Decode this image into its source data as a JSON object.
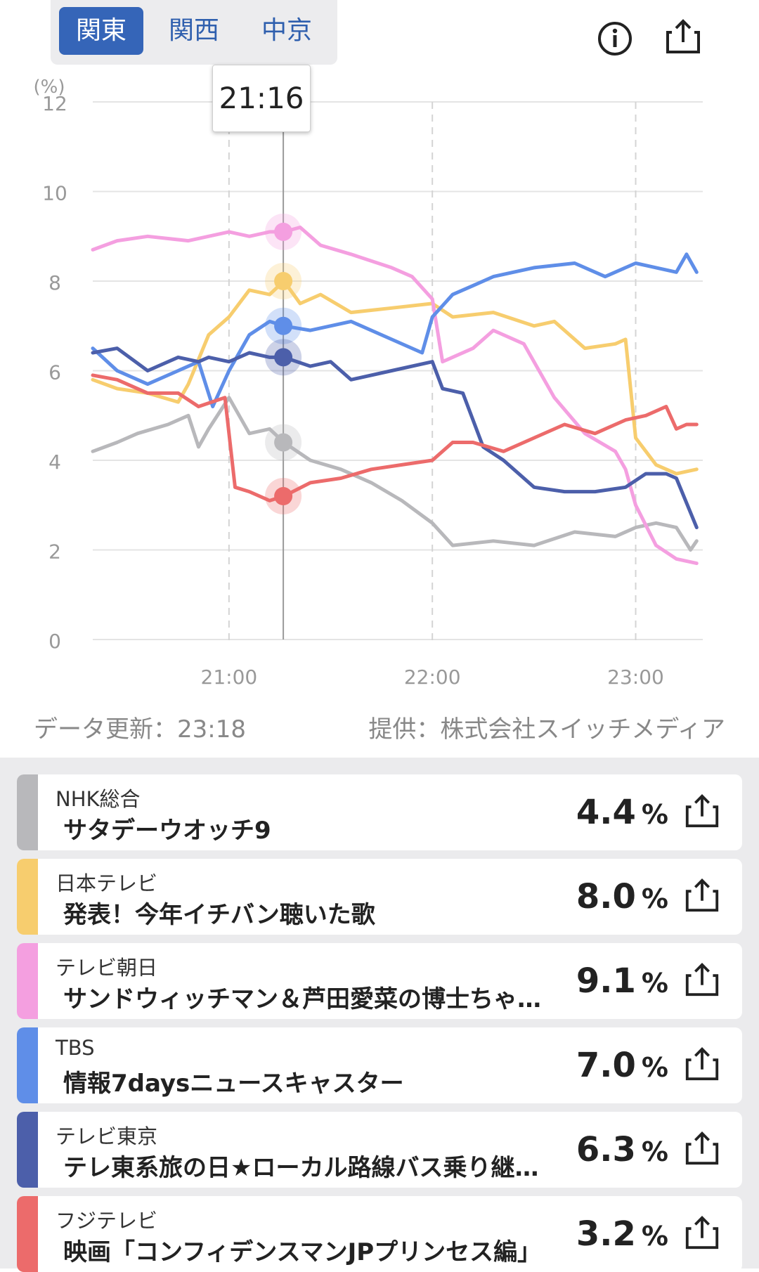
{
  "region_tabs": [
    {
      "label": "関東",
      "active": true
    },
    {
      "label": "関西",
      "active": false
    },
    {
      "label": "中京",
      "active": false
    }
  ],
  "header_icons": {
    "info": "info-icon",
    "share": "share-icon"
  },
  "tooltip_time": "21:16",
  "chart_data": {
    "type": "line",
    "ylabel": "(%)",
    "ylim": [
      0,
      12
    ],
    "yticks": [
      "0",
      "2",
      "4",
      "6",
      "8",
      "10",
      "12"
    ],
    "xlim": [
      20.33,
      23.33
    ],
    "xticks": [
      {
        "x": 21,
        "label": "21:00"
      },
      {
        "x": 22,
        "label": "22:00"
      },
      {
        "x": 23,
        "label": "23:00"
      }
    ],
    "grid": true,
    "cursor_x": 21.267,
    "series": [
      {
        "name": "NHK総合",
        "color": "#b8b8bb",
        "marker": 4.4,
        "x": [
          20.33,
          20.45,
          20.55,
          20.7,
          20.8,
          20.85,
          20.9,
          21.0,
          21.1,
          21.2,
          21.27,
          21.4,
          21.55,
          21.7,
          21.85,
          22.0,
          22.1,
          22.3,
          22.5,
          22.7,
          22.9,
          23.0,
          23.1,
          23.2,
          23.27,
          23.3
        ],
        "y": [
          4.2,
          4.4,
          4.6,
          4.8,
          5.0,
          4.3,
          4.7,
          5.4,
          4.6,
          4.7,
          4.4,
          4.0,
          3.8,
          3.5,
          3.1,
          2.6,
          2.1,
          2.2,
          2.1,
          2.4,
          2.3,
          2.5,
          2.6,
          2.5,
          2.0,
          2.2
        ]
      },
      {
        "name": "日本テレビ",
        "color": "#f7cd6e",
        "marker": 8.0,
        "x": [
          20.33,
          20.45,
          20.6,
          20.75,
          20.8,
          20.9,
          21.0,
          21.1,
          21.2,
          21.27,
          21.35,
          21.45,
          21.6,
          21.8,
          22.0,
          22.1,
          22.3,
          22.5,
          22.6,
          22.75,
          22.9,
          22.95,
          23.0,
          23.1,
          23.2,
          23.3
        ],
        "y": [
          5.8,
          5.6,
          5.5,
          5.3,
          5.7,
          6.8,
          7.2,
          7.8,
          7.7,
          8.0,
          7.5,
          7.7,
          7.3,
          7.4,
          7.5,
          7.2,
          7.3,
          7.0,
          7.1,
          6.5,
          6.6,
          6.7,
          4.5,
          3.9,
          3.7,
          3.8
        ]
      },
      {
        "name": "テレビ朝日",
        "color": "#f49fe0",
        "marker": 9.1,
        "x": [
          20.33,
          20.45,
          20.6,
          20.8,
          21.0,
          21.1,
          21.2,
          21.27,
          21.35,
          21.45,
          21.6,
          21.8,
          21.9,
          22.0,
          22.05,
          22.2,
          22.3,
          22.45,
          22.6,
          22.75,
          22.9,
          22.95,
          23.0,
          23.1,
          23.2,
          23.3
        ],
        "y": [
          8.7,
          8.9,
          9.0,
          8.9,
          9.1,
          9.0,
          9.1,
          9.1,
          9.2,
          8.8,
          8.6,
          8.3,
          8.1,
          7.6,
          6.2,
          6.5,
          6.9,
          6.6,
          5.4,
          4.6,
          4.2,
          3.8,
          3.0,
          2.1,
          1.8,
          1.7
        ]
      },
      {
        "name": "TBS",
        "color": "#5f8ee8",
        "marker": 7.0,
        "x": [
          20.33,
          20.45,
          20.6,
          20.75,
          20.85,
          20.92,
          21.0,
          21.1,
          21.2,
          21.27,
          21.4,
          21.6,
          21.8,
          21.95,
          22.0,
          22.1,
          22.2,
          22.3,
          22.5,
          22.7,
          22.85,
          23.0,
          23.1,
          23.2,
          23.25,
          23.3
        ],
        "y": [
          6.5,
          6.0,
          5.7,
          6.0,
          6.2,
          5.2,
          6.0,
          6.8,
          7.1,
          7.0,
          6.9,
          7.1,
          6.7,
          6.4,
          7.2,
          7.7,
          7.9,
          8.1,
          8.3,
          8.4,
          8.1,
          8.4,
          8.3,
          8.2,
          8.6,
          8.2
        ]
      },
      {
        "name": "テレビ東京",
        "color": "#4c5faa",
        "marker": 6.3,
        "x": [
          20.33,
          20.45,
          20.6,
          20.75,
          20.85,
          20.9,
          21.0,
          21.1,
          21.2,
          21.27,
          21.4,
          21.5,
          21.6,
          21.8,
          22.0,
          22.05,
          22.15,
          22.25,
          22.35,
          22.5,
          22.65,
          22.8,
          22.95,
          23.05,
          23.15,
          23.2,
          23.3
        ],
        "y": [
          6.4,
          6.5,
          6.0,
          6.3,
          6.2,
          6.3,
          6.2,
          6.4,
          6.3,
          6.3,
          6.1,
          6.2,
          5.8,
          6.0,
          6.2,
          5.6,
          5.5,
          4.3,
          4.0,
          3.4,
          3.3,
          3.3,
          3.4,
          3.7,
          3.7,
          3.6,
          2.5
        ]
      },
      {
        "name": "フジテレビ",
        "color": "#ec6b6b",
        "marker": 3.2,
        "x": [
          20.33,
          20.45,
          20.6,
          20.75,
          20.85,
          20.98,
          21.03,
          21.1,
          21.2,
          21.27,
          21.4,
          21.55,
          21.7,
          21.85,
          22.0,
          22.1,
          22.2,
          22.35,
          22.5,
          22.65,
          22.8,
          22.95,
          23.05,
          23.15,
          23.2,
          23.25,
          23.3
        ],
        "y": [
          5.9,
          5.8,
          5.5,
          5.5,
          5.2,
          5.4,
          3.4,
          3.3,
          3.1,
          3.2,
          3.5,
          3.6,
          3.8,
          3.9,
          4.0,
          4.4,
          4.4,
          4.2,
          4.5,
          4.8,
          4.6,
          4.9,
          5.0,
          5.2,
          4.7,
          4.8,
          4.8
        ]
      }
    ]
  },
  "footer": {
    "updated": "データ更新：23:18",
    "provider": "提供：株式会社スイッチメディア"
  },
  "channels": [
    {
      "channel": "NHK総合",
      "program": "サタデーウオッチ9",
      "rating": "4.4",
      "unit": "%",
      "color": "#b8b8bb"
    },
    {
      "channel": "日本テレビ",
      "program": "発表！今年イチバン聴いた歌",
      "rating": "8.0",
      "unit": "%",
      "color": "#f7cd6e"
    },
    {
      "channel": "テレビ朝日",
      "program": "サンドウィッチマン＆芦田愛菜の博士ちゃ…",
      "rating": "9.1",
      "unit": "%",
      "color": "#f49fe0"
    },
    {
      "channel": "TBS",
      "program": "情報7daysニュースキャスター",
      "rating": "7.0",
      "unit": "%",
      "color": "#5f8ee8"
    },
    {
      "channel": "テレビ東京",
      "program": "テレ東系旅の日★ローカル路線バス乗り継…",
      "rating": "6.3",
      "unit": "%",
      "color": "#4c5faa"
    },
    {
      "channel": "フジテレビ",
      "program": "映画「コンフィデンスマンJPプリンセス編」",
      "rating": "3.2",
      "unit": "%",
      "color": "#ec6b6b"
    }
  ]
}
